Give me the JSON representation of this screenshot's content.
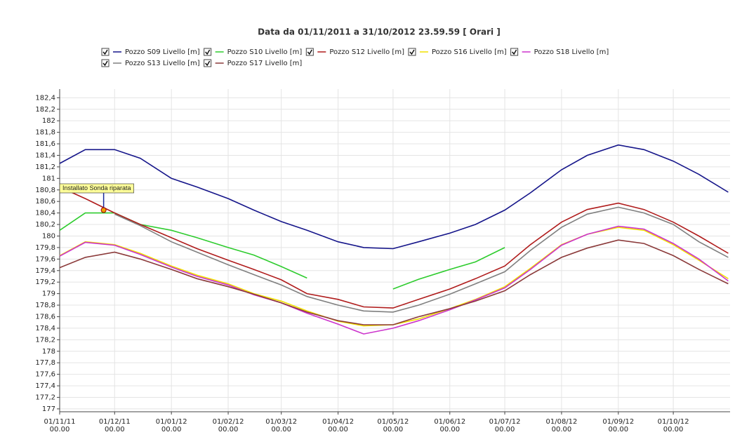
{
  "chart_data": {
    "type": "line",
    "title": "Data da 01/11/2011 a 31/10/2012 23.59.59  [ Orari ]",
    "x": [
      "2011-11-01",
      "2011-11-15",
      "2011-12-01",
      "2011-12-15",
      "2012-01-01",
      "2012-01-15",
      "2012-02-01",
      "2012-02-15",
      "2012-03-01",
      "2012-03-15",
      "2012-04-01",
      "2012-04-15",
      "2012-05-01",
      "2012-05-15",
      "2012-06-01",
      "2012-06-15",
      "2012-07-01",
      "2012-07-15",
      "2012-08-01",
      "2012-08-15",
      "2012-09-01",
      "2012-09-15",
      "2012-10-01",
      "2012-10-15",
      "2012-10-31"
    ],
    "series": [
      {
        "name": "Pozzo S09 Livello [m]",
        "color": "#15158a",
        "values": [
          181.26,
          181.5,
          181.5,
          181.35,
          181.0,
          180.85,
          180.65,
          180.45,
          180.25,
          180.1,
          179.9,
          179.8,
          179.78,
          179.9,
          180.05,
          180.2,
          180.45,
          180.75,
          181.15,
          181.4,
          181.58,
          181.5,
          181.3,
          181.07,
          180.76
        ]
      },
      {
        "name": "Pozzo S10 Livello [m]",
        "color": "#2ecc2e",
        "values": [
          180.1,
          180.4,
          180.4,
          180.2,
          180.1,
          179.97,
          179.8,
          179.67,
          179.47,
          179.27,
          null,
          null,
          179.08,
          179.25,
          179.42,
          179.55,
          179.8,
          null,
          null,
          null,
          null,
          null,
          null,
          null,
          null
        ]
      },
      {
        "name": "Pozzo S12 Livello [m]",
        "color": "#b01c1c",
        "values": [
          180.85,
          180.65,
          180.4,
          180.2,
          179.97,
          179.78,
          179.58,
          179.42,
          179.24,
          179.0,
          178.9,
          178.77,
          178.75,
          178.9,
          179.08,
          179.26,
          179.48,
          179.85,
          180.24,
          180.46,
          180.57,
          180.46,
          180.24,
          180.0,
          179.7
        ]
      },
      {
        "name": "Pozzo S16 Livello [m]",
        "color": "#f0e000",
        "values": [
          179.66,
          179.9,
          179.85,
          179.7,
          179.48,
          179.32,
          179.17,
          179.0,
          178.87,
          178.7,
          178.52,
          178.44,
          178.46,
          178.56,
          178.74,
          178.9,
          179.12,
          179.44,
          179.85,
          180.03,
          180.15,
          180.1,
          179.85,
          179.58,
          179.26
        ]
      },
      {
        "name": "Pozzo S18 Livello [m]",
        "color": "#cc33cc",
        "values": [
          179.65,
          179.89,
          179.84,
          179.68,
          179.46,
          179.3,
          179.15,
          178.98,
          178.84,
          178.66,
          178.47,
          178.3,
          178.4,
          178.53,
          178.72,
          178.89,
          179.1,
          179.42,
          179.84,
          180.03,
          180.17,
          180.12,
          179.87,
          179.6,
          179.22
        ]
      },
      {
        "name": "Pozzo S13 Livello [m]",
        "color": "#808080",
        "values": [
          null,
          null,
          180.38,
          180.18,
          179.9,
          179.72,
          179.5,
          179.33,
          179.15,
          178.95,
          178.8,
          178.7,
          178.68,
          178.8,
          178.99,
          179.17,
          179.38,
          179.75,
          180.15,
          180.38,
          180.5,
          180.4,
          180.2,
          179.9,
          179.63
        ]
      },
      {
        "name": "Pozzo S17 Livello [m]",
        "color": "#8b3a3a",
        "values": [
          179.45,
          179.63,
          179.72,
          179.6,
          179.42,
          179.26,
          179.12,
          178.99,
          178.84,
          178.68,
          178.53,
          178.46,
          178.46,
          178.6,
          178.74,
          178.87,
          179.05,
          179.33,
          179.63,
          179.79,
          179.93,
          179.87,
          179.66,
          179.42,
          179.17
        ]
      }
    ],
    "annotation": {
      "text": "Installato Sonda riparata",
      "x": "2011-11-25",
      "y": 180.45
    },
    "xlim": [
      "2011-11-01",
      "2012-11-01"
    ],
    "xticks": [
      {
        "value": "2011-11-01",
        "label": "01/11/11\n00.00"
      },
      {
        "value": "2011-12-01",
        "label": "01/12/11\n00.00"
      },
      {
        "value": "2012-01-01",
        "label": "01/01/12\n00.00"
      },
      {
        "value": "2012-02-01",
        "label": "01/02/12\n00.00"
      },
      {
        "value": "2012-03-01",
        "label": "01/03/12\n00.00"
      },
      {
        "value": "2012-04-01",
        "label": "01/04/12\n00.00"
      },
      {
        "value": "2012-05-01",
        "label": "01/05/12\n00.00"
      },
      {
        "value": "2012-06-01",
        "label": "01/06/12\n00.00"
      },
      {
        "value": "2012-07-01",
        "label": "01/07/12\n00.00"
      },
      {
        "value": "2012-08-01",
        "label": "01/08/12\n00.00"
      },
      {
        "value": "2012-09-01",
        "label": "01/09/12\n00.00"
      },
      {
        "value": "2012-10-01",
        "label": "01/10/12\n00.00"
      }
    ],
    "ylim": [
      176.95,
      182.55
    ],
    "yticks": [
      177,
      {
        "value": 177.2,
        "label": "177,2"
      },
      {
        "value": 177.4,
        "label": "177,4"
      },
      {
        "value": 177.6,
        "label": "177,6"
      },
      {
        "value": 177.8,
        "label": "177,8"
      },
      178,
      {
        "value": 178.2,
        "label": "178,2"
      },
      {
        "value": 178.4,
        "label": "178,4"
      },
      {
        "value": 178.6,
        "label": "178,6"
      },
      {
        "value": 178.8,
        "label": "178,8"
      },
      179,
      {
        "value": 179.2,
        "label": "179,2"
      },
      {
        "value": 179.4,
        "label": "179,4"
      },
      {
        "value": 179.6,
        "label": "179,6"
      },
      {
        "value": 179.8,
        "label": "179,8"
      },
      180,
      {
        "value": 180.2,
        "label": "180,2"
      },
      {
        "value": 180.4,
        "label": "180,4"
      },
      {
        "value": 180.6,
        "label": "180,6"
      },
      {
        "value": 180.8,
        "label": "180,8"
      },
      181,
      {
        "value": 181.2,
        "label": "181,2"
      },
      {
        "value": 181.4,
        "label": "181,4"
      },
      {
        "value": 181.6,
        "label": "181,6"
      },
      {
        "value": 181.8,
        "label": "181,8"
      },
      182,
      {
        "value": 182.2,
        "label": "182,2"
      },
      {
        "value": 182.4,
        "label": "182,4"
      }
    ],
    "grid": true
  }
}
